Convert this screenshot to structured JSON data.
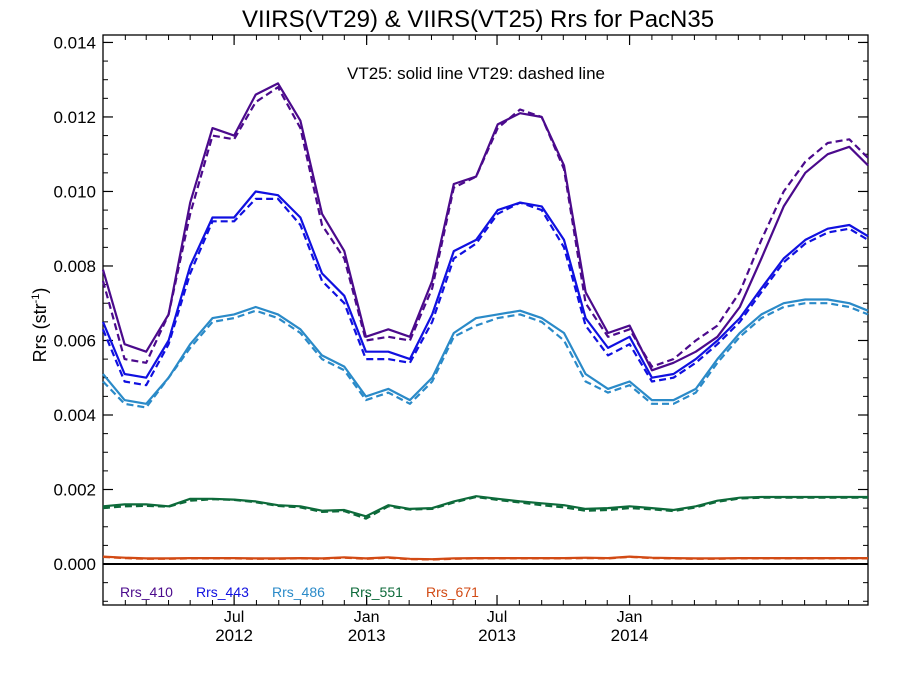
{
  "chart_data": {
    "type": "line",
    "title": "VIIRS(VT29) & VIIRS(VT25)  Rrs for PacN35",
    "ylabel": "Rrs (str",
    "ylabel_sup": "-1",
    "ylabel_close": ")",
    "annotation": "VT25: solid line   VT29: dashed line",
    "ylim": [
      -0.0011,
      0.0142
    ],
    "yticks": [
      "0.000",
      "0.002",
      "0.004",
      "0.006",
      "0.008",
      "0.010",
      "0.012",
      "0.014"
    ],
    "ytick_values": [
      0,
      0.002,
      0.004,
      0.006,
      0.008,
      0.01,
      0.012,
      0.014
    ],
    "xlim": [
      "2012-01-01",
      "2014-11-28"
    ],
    "xticks": [
      {
        "date": "2012-07-01",
        "month": "Jul",
        "year": "2012"
      },
      {
        "date": "2013-01-01",
        "month": "Jan",
        "year": "2013"
      },
      {
        "date": "2013-07-01",
        "month": "Jul",
        "year": "2013"
      },
      {
        "date": "2014-01-01",
        "month": "Jan",
        "year": "2014"
      }
    ],
    "grid": false,
    "legend_position": "bottom-left",
    "x": [
      "2012-01-01",
      "2012-01-31",
      "2012-03-01",
      "2012-04-01",
      "2012-05-01",
      "2012-06-01",
      "2012-07-01",
      "2012-07-31",
      "2012-08-31",
      "2012-10-01",
      "2012-10-31",
      "2012-12-01",
      "2012-12-31",
      "2013-01-31",
      "2013-03-02",
      "2013-04-02",
      "2013-05-02",
      "2013-06-02",
      "2013-07-02",
      "2013-08-02",
      "2013-09-01",
      "2013-10-02",
      "2013-11-01",
      "2013-12-02",
      "2014-01-01",
      "2014-02-01",
      "2014-03-03",
      "2014-04-03",
      "2014-05-03",
      "2014-06-03",
      "2014-07-03",
      "2014-08-03",
      "2014-09-02",
      "2014-10-03",
      "2014-11-02",
      "2014-11-28"
    ],
    "series": [
      {
        "name": "Rrs_410",
        "color": "#4b0a8c",
        "solid": [
          0.0079,
          0.0059,
          0.0057,
          0.0067,
          0.0097,
          0.0117,
          0.0115,
          0.0126,
          0.0129,
          0.0119,
          0.0094,
          0.0084,
          0.0061,
          0.0063,
          0.0061,
          0.0076,
          0.0102,
          0.0104,
          0.0118,
          0.0121,
          0.012,
          0.0107,
          0.0073,
          0.0062,
          0.0064,
          0.0052,
          0.0054,
          0.0057,
          0.0061,
          0.0069,
          0.0082,
          0.0096,
          0.0105,
          0.011,
          0.0112,
          0.0107
        ],
        "dashed": [
          0.0076,
          0.0055,
          0.0054,
          0.0067,
          0.0094,
          0.0115,
          0.0114,
          0.0124,
          0.0128,
          0.0117,
          0.0091,
          0.0082,
          0.006,
          0.0061,
          0.006,
          0.0074,
          0.0101,
          0.0104,
          0.0117,
          0.0122,
          0.012,
          0.0106,
          0.007,
          0.0061,
          0.0063,
          0.0053,
          0.0055,
          0.006,
          0.0064,
          0.0073,
          0.0087,
          0.01,
          0.0108,
          0.0113,
          0.0114,
          0.0109
        ]
      },
      {
        "name": "Rrs_443",
        "color": "#1010e0",
        "solid": [
          0.0065,
          0.0051,
          0.005,
          0.006,
          0.008,
          0.0093,
          0.0093,
          0.01,
          0.0099,
          0.0093,
          0.0078,
          0.0072,
          0.0057,
          0.0057,
          0.0055,
          0.0067,
          0.0084,
          0.0087,
          0.0095,
          0.0097,
          0.0096,
          0.0087,
          0.0066,
          0.0058,
          0.0061,
          0.005,
          0.0051,
          0.0055,
          0.006,
          0.0066,
          0.0074,
          0.0082,
          0.0087,
          0.009,
          0.0091,
          0.0088
        ],
        "dashed": [
          0.0063,
          0.0049,
          0.0048,
          0.0059,
          0.0078,
          0.0092,
          0.0092,
          0.0098,
          0.0098,
          0.0091,
          0.0076,
          0.007,
          0.0055,
          0.0055,
          0.0054,
          0.0065,
          0.0082,
          0.0086,
          0.0094,
          0.0097,
          0.0095,
          0.0085,
          0.0064,
          0.0056,
          0.0059,
          0.0049,
          0.005,
          0.0054,
          0.0059,
          0.0065,
          0.0073,
          0.0081,
          0.0086,
          0.0089,
          0.009,
          0.0087
        ]
      },
      {
        "name": "Rrs_486",
        "color": "#2a8ac8",
        "solid": [
          0.0051,
          0.0044,
          0.0043,
          0.005,
          0.0059,
          0.0066,
          0.0067,
          0.0069,
          0.0067,
          0.0063,
          0.0056,
          0.0053,
          0.0045,
          0.0047,
          0.0044,
          0.005,
          0.0062,
          0.0066,
          0.0067,
          0.0068,
          0.0066,
          0.0062,
          0.0051,
          0.0047,
          0.0049,
          0.0044,
          0.0044,
          0.0047,
          0.0055,
          0.0062,
          0.0067,
          0.007,
          0.0071,
          0.0071,
          0.007,
          0.0068
        ],
        "dashed": [
          0.0049,
          0.0043,
          0.0042,
          0.005,
          0.0058,
          0.0065,
          0.0066,
          0.0068,
          0.0066,
          0.0062,
          0.0055,
          0.0052,
          0.0044,
          0.0046,
          0.0043,
          0.0049,
          0.0061,
          0.0064,
          0.0066,
          0.0067,
          0.0065,
          0.006,
          0.0049,
          0.0046,
          0.0048,
          0.0043,
          0.0043,
          0.0046,
          0.0054,
          0.0061,
          0.0066,
          0.0069,
          0.007,
          0.007,
          0.0069,
          0.0067
        ]
      },
      {
        "name": "Rrs_551",
        "color": "#0d6a3a",
        "solid": [
          0.00155,
          0.0016,
          0.0016,
          0.00155,
          0.00175,
          0.00175,
          0.00173,
          0.00168,
          0.00158,
          0.00155,
          0.00143,
          0.00145,
          0.00128,
          0.00158,
          0.00148,
          0.0015,
          0.00168,
          0.00182,
          0.00175,
          0.00168,
          0.00163,
          0.00158,
          0.00148,
          0.0015,
          0.00155,
          0.0015,
          0.00145,
          0.00155,
          0.0017,
          0.00178,
          0.0018,
          0.0018,
          0.0018,
          0.0018,
          0.0018,
          0.0018
        ],
        "dashed": [
          0.0015,
          0.00155,
          0.00156,
          0.00154,
          0.0017,
          0.00174,
          0.00172,
          0.00166,
          0.00156,
          0.00152,
          0.0014,
          0.00142,
          0.00122,
          0.00155,
          0.00146,
          0.00148,
          0.00165,
          0.0018,
          0.00172,
          0.00165,
          0.00158,
          0.00152,
          0.00143,
          0.00145,
          0.0015,
          0.00147,
          0.00142,
          0.00152,
          0.00167,
          0.00176,
          0.00178,
          0.00178,
          0.00178,
          0.00178,
          0.00178,
          0.00178
        ]
      },
      {
        "name": "Rrs_671",
        "color": "#d24a14",
        "solid": [
          0.0002,
          0.00017,
          0.00015,
          0.00015,
          0.00016,
          0.00016,
          0.00016,
          0.00015,
          0.00015,
          0.00016,
          0.00015,
          0.00018,
          0.00015,
          0.00018,
          0.00014,
          0.00013,
          0.00015,
          0.00016,
          0.00016,
          0.00016,
          0.00016,
          0.00016,
          0.00017,
          0.00016,
          0.0002,
          0.00017,
          0.00016,
          0.00015,
          0.00015,
          0.00016,
          0.00016,
          0.00016,
          0.00016,
          0.00016,
          0.00016,
          0.00016
        ],
        "dashed": [
          0.00019,
          0.00016,
          0.00014,
          0.00014,
          0.00015,
          0.00015,
          0.00015,
          0.00014,
          0.00014,
          0.00015,
          0.00014,
          0.00017,
          0.00014,
          0.00017,
          0.00013,
          0.00012,
          0.00014,
          0.00015,
          0.00015,
          0.00015,
          0.00015,
          0.00015,
          0.00016,
          0.00015,
          0.00019,
          0.00016,
          0.00015,
          0.00014,
          0.00014,
          0.00015,
          0.00015,
          0.00015,
          0.00015,
          0.00015,
          0.00015,
          0.00015
        ]
      }
    ]
  }
}
